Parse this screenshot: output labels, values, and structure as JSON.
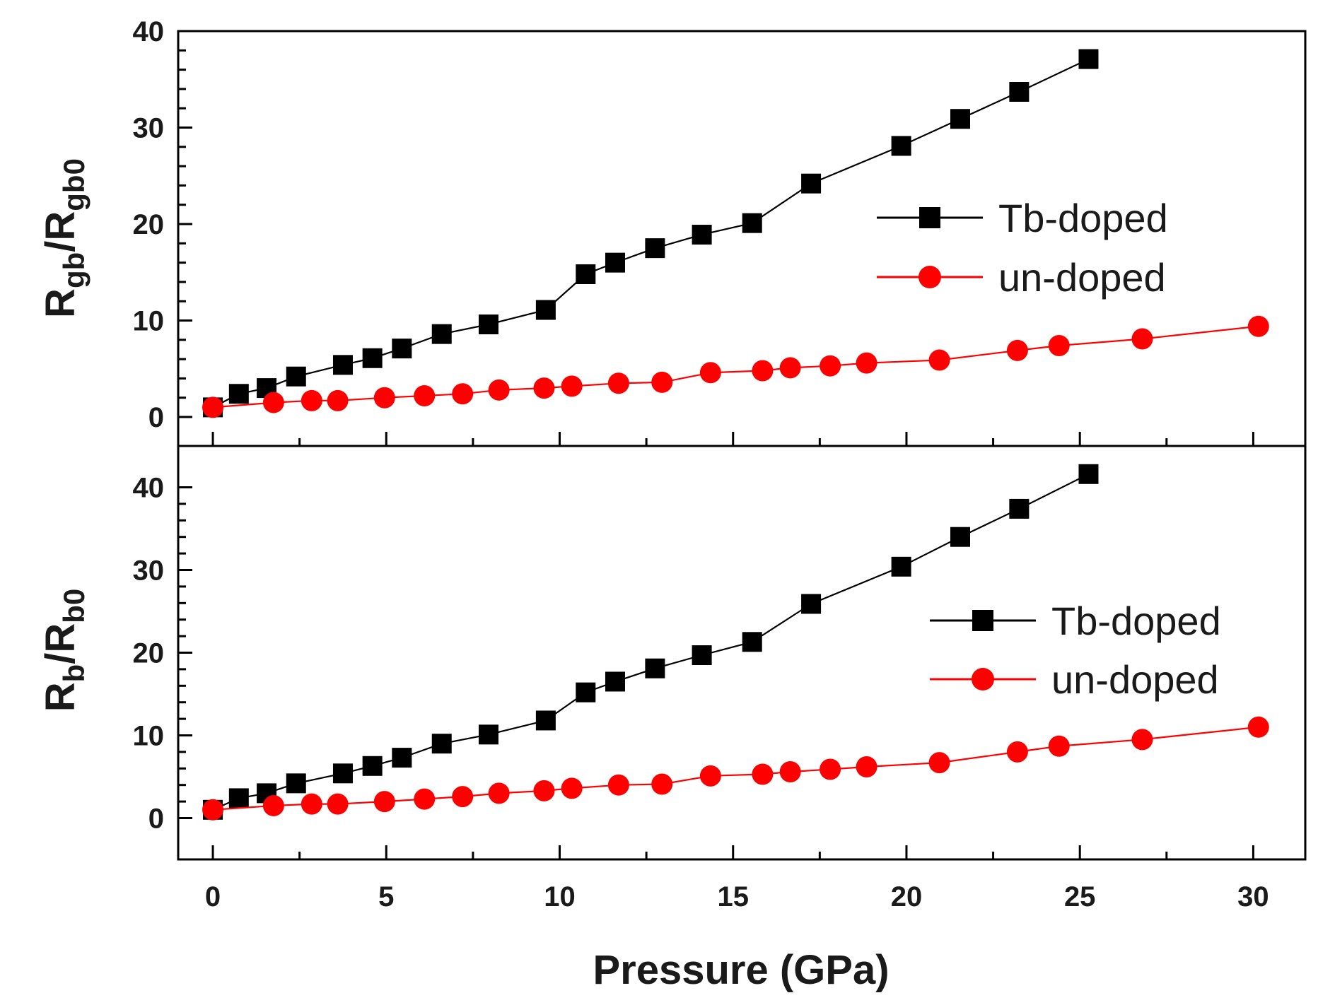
{
  "chart_data": {
    "type": "line",
    "x_axis": {
      "label": "Pressure (GPa)",
      "range": [
        -1,
        31.5
      ],
      "major_ticks": [
        0,
        5,
        10,
        15,
        20,
        25,
        30
      ],
      "minor_step": 2.5
    },
    "colors": {
      "tb_doped": "#000000",
      "un_doped": "#ff0000"
    },
    "panels": [
      {
        "id": "top",
        "ylabel_main": "R",
        "ylabel_sub1": "gb",
        "ylabel_mid": "/R",
        "ylabel_sub2": "gb0",
        "ylim": [
          -3,
          40
        ],
        "y_ticks": [
          0,
          10,
          20,
          30,
          40
        ],
        "legend": {
          "position": "right",
          "entries": [
            "Tb-doped",
            "un-doped"
          ]
        },
        "series": [
          {
            "name": "Tb-doped",
            "marker": "square",
            "x": [
              0,
              0.75,
              1.55,
              2.4,
              3.75,
              4.6,
              5.45,
              6.6,
              7.95,
              9.6,
              10.75,
              11.6,
              12.75,
              14.1,
              15.55,
              17.25,
              19.85,
              21.55,
              23.25,
              25.25
            ],
            "y": [
              1,
              2.4,
              3,
              4.2,
              5.4,
              6.1,
              7.1,
              8.6,
              9.6,
              11.1,
              14.8,
              16,
              17.5,
              18.9,
              20.1,
              24.2,
              28.1,
              30.9,
              33.7,
              37.1
            ]
          },
          {
            "name": "un-doped",
            "marker": "circle",
            "x": [
              0,
              1.75,
              2.85,
              3.6,
              4.95,
              6.1,
              7.2,
              8.25,
              9.55,
              10.35,
              11.7,
              12.95,
              14.35,
              15.85,
              16.65,
              17.8,
              18.85,
              20.95,
              23.2,
              24.4,
              26.8,
              30.15
            ],
            "y": [
              1,
              1.5,
              1.7,
              1.7,
              2,
              2.2,
              2.4,
              2.8,
              3,
              3.2,
              3.5,
              3.6,
              4.6,
              4.8,
              5.1,
              5.3,
              5.6,
              5.9,
              6.9,
              7.4,
              8.1,
              9.4
            ]
          }
        ]
      },
      {
        "id": "bottom",
        "ylabel_main": "R",
        "ylabel_sub1": "b",
        "ylabel_mid": "/R",
        "ylabel_sub2": "b0",
        "ylim": [
          -5,
          45
        ],
        "y_ticks": [
          0,
          10,
          20,
          30,
          40
        ],
        "legend": {
          "position": "right",
          "entries": [
            "Tb-doped",
            "un-doped"
          ]
        },
        "series": [
          {
            "name": "Tb-doped",
            "marker": "square",
            "x": [
              0,
              0.75,
              1.55,
              2.4,
              3.75,
              4.6,
              5.45,
              6.6,
              7.95,
              9.6,
              10.75,
              11.6,
              12.75,
              14.1,
              15.55,
              17.25,
              19.85,
              21.55,
              23.25,
              25.25
            ],
            "y": [
              1,
              2.4,
              3,
              4.2,
              5.4,
              6.3,
              7.3,
              9,
              10.1,
              11.8,
              15.2,
              16.5,
              18.1,
              19.7,
              21.3,
              25.9,
              30.4,
              34,
              37.4,
              41.6
            ]
          },
          {
            "name": "un-doped",
            "marker": "circle",
            "x": [
              0,
              1.75,
              2.85,
              3.6,
              4.95,
              6.1,
              7.2,
              8.25,
              9.55,
              10.35,
              11.7,
              12.95,
              14.35,
              15.85,
              16.65,
              17.8,
              18.85,
              20.95,
              23.2,
              24.4,
              26.8,
              30.15
            ],
            "y": [
              1,
              1.5,
              1.7,
              1.7,
              2,
              2.3,
              2.6,
              3,
              3.3,
              3.6,
              4,
              4.1,
              5.1,
              5.3,
              5.6,
              5.9,
              6.2,
              6.7,
              8,
              8.7,
              9.5,
              11
            ]
          }
        ]
      }
    ]
  }
}
